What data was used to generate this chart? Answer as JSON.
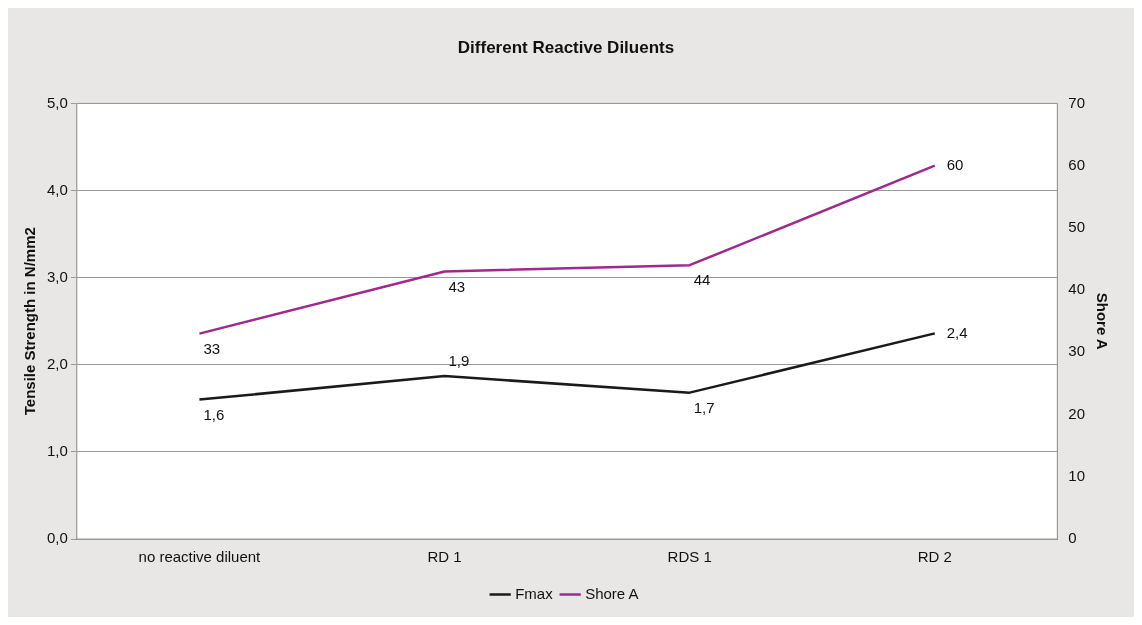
{
  "chart_data": {
    "type": "line",
    "title": "Different Reactive Diluents",
    "ylabel": "Tensile Strength in N/mm2",
    "y2label": "Shore A",
    "categories": [
      "no reactive diluent",
      "RD 1",
      "RDS 1",
      "RD 2"
    ],
    "series": [
      {
        "name": "Fmax",
        "color": "#1a1a1a",
        "values": [
          1.6,
          1.87,
          1.68,
          2.36
        ],
        "value_labels": [
          "1,6",
          "1,9",
          "1,7",
          "2,4"
        ]
      },
      {
        "name": "Shore A",
        "color": "#a0288f",
        "values": [
          33,
          43,
          44,
          60
        ],
        "axis": "y2",
        "value_labels": [
          "33",
          "43",
          "44",
          "60"
        ]
      }
    ],
    "ylim": [
      0,
      5
    ],
    "yticks": [
      {
        "value": 0,
        "label": "0,0"
      },
      {
        "value": 1,
        "label": "1,0"
      },
      {
        "value": 2,
        "label": "2,0"
      },
      {
        "value": 3,
        "label": "3,0"
      },
      {
        "value": 4,
        "label": "4,0"
      },
      {
        "value": 5,
        "label": "5,0"
      }
    ],
    "y2lim": [
      0,
      70
    ],
    "y2ticks": [
      0,
      10,
      20,
      30,
      40,
      50,
      60,
      70
    ],
    "grid": "y",
    "legend": "bottom",
    "marker": "none",
    "line_style": "solid"
  }
}
